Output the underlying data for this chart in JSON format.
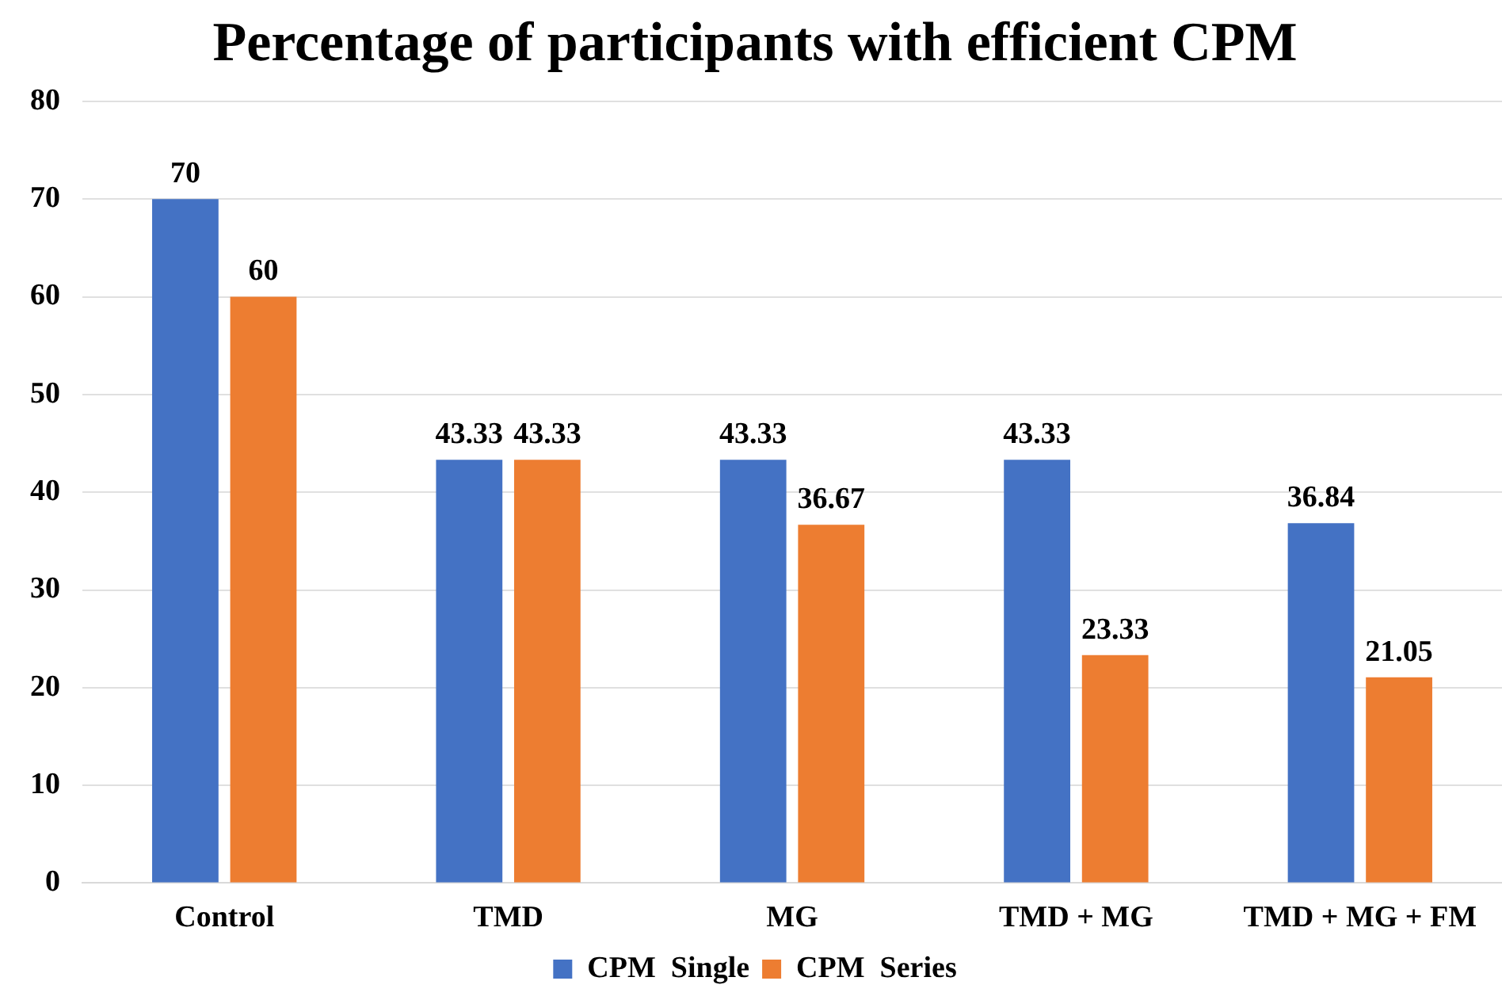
{
  "chart_data": {
    "type": "bar",
    "title": "Percentage of participants with efficient CPM",
    "categories": [
      "Control",
      "TMD",
      "MG",
      "TMD + MG",
      "TMD + MG + FM"
    ],
    "series": [
      {
        "name": "CPM  Single",
        "color": "#4472c4",
        "values": [
          70,
          43.33,
          43.33,
          43.33,
          36.84
        ]
      },
      {
        "name": "CPM  Series",
        "color": "#ed7d31",
        "values": [
          60,
          43.33,
          36.67,
          23.33,
          21.05
        ]
      }
    ],
    "ylim": [
      0,
      80
    ],
    "yticks": [
      0,
      10,
      20,
      30,
      40,
      50,
      60,
      70,
      80
    ],
    "grid": "y",
    "legend": "bottom",
    "data_labels": true
  }
}
